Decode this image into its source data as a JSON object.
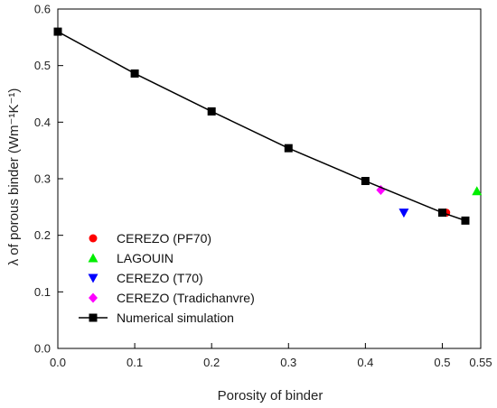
{
  "chart_data": {
    "type": "scatter",
    "xlabel": "Porosity of binder",
    "ylabel": "λ of porous binder (Wm⁻¹K⁻¹)",
    "xlim": [
      0,
      0.55
    ],
    "ylim": [
      0,
      0.6
    ],
    "x_ticks": [
      "0.0",
      "0.1",
      "0.2",
      "0.3",
      "0.4",
      "0.5",
      "0.55"
    ],
    "x_tick_values": [
      0,
      0.1,
      0.2,
      0.3,
      0.4,
      0.5,
      0.55
    ],
    "y_ticks": [
      "0.0",
      "0.1",
      "0.2",
      "0.3",
      "0.4",
      "0.5",
      "0.6"
    ],
    "y_tick_values": [
      0,
      0.1,
      0.2,
      0.3,
      0.4,
      0.5,
      0.6
    ],
    "grid": false,
    "legend_position": "bottom-left",
    "series": [
      {
        "name": "CEREZO (PF70)",
        "marker": "circle",
        "color": "#ff0000",
        "line": false,
        "points": [
          [
            0.505,
            0.24
          ]
        ]
      },
      {
        "name": "LAGOUIN",
        "marker": "triangle-up",
        "color": "#00ee00",
        "line": false,
        "points": [
          [
            0.545,
            0.278
          ]
        ]
      },
      {
        "name": "CEREZO (T70)",
        "marker": "triangle-down",
        "color": "#0000ff",
        "line": false,
        "points": [
          [
            0.45,
            0.24
          ]
        ]
      },
      {
        "name": "CEREZO (Tradichanvre)",
        "marker": "diamond",
        "color": "#ff00ff",
        "line": false,
        "points": [
          [
            0.42,
            0.28
          ]
        ]
      },
      {
        "name": "Numerical simulation",
        "marker": "square",
        "color": "#000000",
        "line": true,
        "points": [
          [
            0.0,
            0.56
          ],
          [
            0.1,
            0.486
          ],
          [
            0.2,
            0.419
          ],
          [
            0.3,
            0.354
          ],
          [
            0.4,
            0.296
          ],
          [
            0.5,
            0.24
          ],
          [
            0.53,
            0.226
          ]
        ]
      }
    ]
  }
}
